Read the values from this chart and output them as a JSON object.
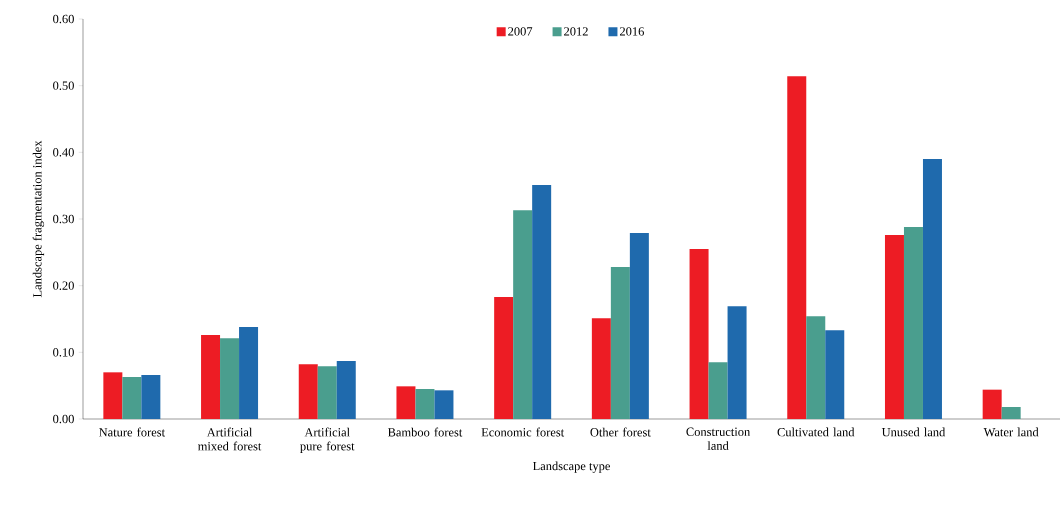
{
  "chart_data": {
    "type": "bar",
    "xlabel": "Landscape type",
    "ylabel": "Landscape fragmentation index",
    "categories": [
      "Nature forest",
      "Artificial mixed forest",
      "Artificial pure forest",
      "Bamboo forest",
      "Economic forest",
      "Other forest",
      "Construction land",
      "Cultivated land",
      "Unused land",
      "Water land"
    ],
    "series": [
      {
        "name": "2007",
        "color": "#ed1c24",
        "values": [
          0.07,
          0.126,
          0.082,
          0.049,
          0.183,
          0.151,
          0.255,
          0.514,
          0.276,
          0.044
        ]
      },
      {
        "name": "2012",
        "color": "#4a9e8e",
        "values": [
          0.063,
          0.121,
          0.079,
          0.045,
          0.313,
          0.228,
          0.085,
          0.154,
          0.288,
          0.018
        ]
      },
      {
        "name": "2016",
        "color": "#1f6aad",
        "values": [
          0.066,
          0.138,
          0.087,
          0.043,
          0.351,
          0.279,
          0.169,
          0.133,
          0.39,
          null
        ]
      }
    ],
    "ylim": [
      0,
      0.6
    ],
    "yticks": [
      {
        "value": 0,
        "label": "0.00"
      },
      {
        "value": 0.1,
        "label": "0.10"
      },
      {
        "value": 0.2,
        "label": "0.20"
      },
      {
        "value": 0.3,
        "label": "0.30"
      },
      {
        "value": 0.4,
        "label": "0.40"
      },
      {
        "value": 0.5,
        "label": "0.50"
      },
      {
        "value": 0.6,
        "label": "0.60"
      }
    ],
    "legend": "top",
    "grid": false
  }
}
